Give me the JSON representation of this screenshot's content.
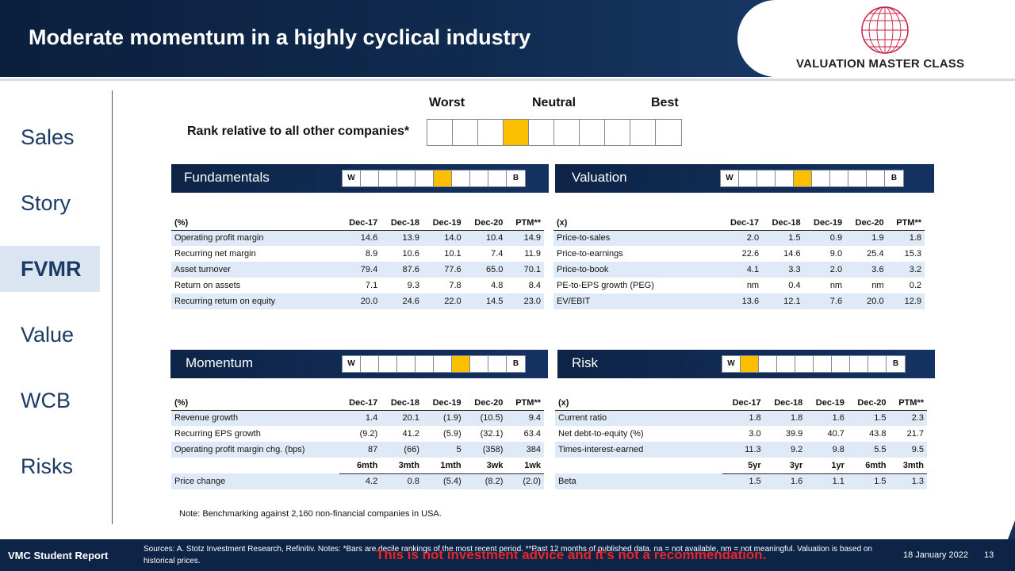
{
  "header": {
    "title": "Moderate momentum in a highly cyclical industry",
    "logo_text": "VALUATION MASTER CLASS"
  },
  "sidebar": {
    "items": [
      {
        "label": "Sales",
        "active": false
      },
      {
        "label": "Story",
        "active": false
      },
      {
        "label": "FVMR",
        "active": true
      },
      {
        "label": "Value",
        "active": false
      },
      {
        "label": "WCB",
        "active": false
      },
      {
        "label": "Risks",
        "active": false
      }
    ]
  },
  "rank": {
    "worst": "Worst",
    "neutral": "Neutral",
    "best": "Best",
    "label": "Rank relative to all other companies*",
    "cells": 10,
    "selected": 4
  },
  "sections": {
    "fundamentals": {
      "title": "Fundamentals",
      "w": "W",
      "b": "B",
      "selected": 6
    },
    "valuation": {
      "title": "Valuation",
      "w": "W",
      "b": "B",
      "selected": 5
    },
    "momentum": {
      "title": "Momentum",
      "w": "W",
      "b": "B",
      "selected": 7
    },
    "risk": {
      "title": "Risk",
      "w": "W",
      "b": "B",
      "selected": 2
    }
  },
  "tables": {
    "fundamentals": {
      "headers": [
        "(%)",
        "Dec-17",
        "Dec-18",
        "Dec-19",
        "Dec-20",
        "PTM**"
      ],
      "rows": [
        [
          "Operating profit margin",
          "14.6",
          "13.9",
          "14.0",
          "10.4",
          "14.9"
        ],
        [
          "Recurring net margin",
          "8.9",
          "10.6",
          "10.1",
          "7.4",
          "11.9"
        ],
        [
          "Asset turnover",
          "79.4",
          "87.6",
          "77.6",
          "65.0",
          "70.1"
        ],
        [
          "Return on assets",
          "7.1",
          "9.3",
          "7.8",
          "4.8",
          "8.4"
        ],
        [
          "Recurring return on equity",
          "20.0",
          "24.6",
          "22.0",
          "14.5",
          "23.0"
        ]
      ]
    },
    "valuation": {
      "headers": [
        "(x)",
        "Dec-17",
        "Dec-18",
        "Dec-19",
        "Dec-20",
        "PTM**"
      ],
      "rows": [
        [
          "Price-to-sales",
          "2.0",
          "1.5",
          "0.9",
          "1.9",
          "1.8"
        ],
        [
          "Price-to-earnings",
          "22.6",
          "14.6",
          "9.0",
          "25.4",
          "15.3"
        ],
        [
          "Price-to-book",
          "4.1",
          "3.3",
          "2.0",
          "3.6",
          "3.2"
        ],
        [
          "PE-to-EPS growth (PEG)",
          "nm",
          "0.4",
          "nm",
          "nm",
          "0.2"
        ],
        [
          "EV/EBIT",
          "13.6",
          "12.1",
          "7.6",
          "20.0",
          "12.9"
        ]
      ]
    },
    "momentum": {
      "headers": [
        "(%)",
        "Dec-17",
        "Dec-18",
        "Dec-19",
        "Dec-20",
        "PTM**"
      ],
      "rows": [
        [
          "Revenue growth",
          "1.4",
          "20.1",
          "(1.9)",
          "(10.5)",
          "9.4"
        ],
        [
          "Recurring EPS growth",
          "(9.2)",
          "41.2",
          "(5.9)",
          "(32.1)",
          "63.4"
        ],
        [
          "Operating profit margin chg. (bps)",
          "87",
          "(66)",
          "5",
          "(358)",
          "384"
        ]
      ],
      "sub_headers": [
        "",
        "6mth",
        "3mth",
        "1mth",
        "3wk",
        "1wk"
      ],
      "sub_rows": [
        [
          "Price change",
          "4.2",
          "0.8",
          "(5.4)",
          "(8.2)",
          "(2.0)"
        ]
      ]
    },
    "risk": {
      "headers": [
        "(x)",
        "Dec-17",
        "Dec-18",
        "Dec-19",
        "Dec-20",
        "PTM**"
      ],
      "rows": [
        [
          "Current ratio",
          "1.8",
          "1.8",
          "1.6",
          "1.5",
          "2.3"
        ],
        [
          "Net debt-to-equity (%)",
          "3.0",
          "39.9",
          "40.7",
          "43.8",
          "21.7"
        ],
        [
          "Times-interest-earned",
          "11.3",
          "9.2",
          "9.8",
          "5.5",
          "9.5"
        ]
      ],
      "sub_headers": [
        "",
        "5yr",
        "3yr",
        "1yr",
        "6mth",
        "3mth"
      ],
      "sub_rows": [
        [
          "Beta",
          "1.5",
          "1.6",
          "1.1",
          "1.5",
          "1.3"
        ]
      ]
    }
  },
  "note": "Note:  Benchmarking against 2,160 non-financial companies in USA.",
  "footer": {
    "label": "VMC Student Report",
    "sources": "Sources: A. Stotz Investment Research, Refinitiv. Notes: *Bars are decile rankings of the most recent period. **Past 12 months of published data. na = not available, nm = not meaningful. Valuation is based on historical prices.",
    "warning": "This is not investment advice and it's not a recommendation.",
    "date": "18 January 2022",
    "page": "13"
  },
  "colors": {
    "navy": "#0d2446",
    "highlight": "#fbbf00",
    "row_shade": "#deebf7",
    "warning": "#e8262a"
  },
  "icons": {
    "logo": "globe-icon"
  }
}
